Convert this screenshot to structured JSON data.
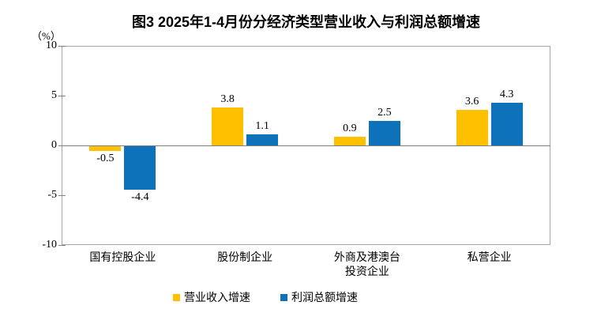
{
  "chart_data": {
    "type": "bar",
    "title": "图3 2025年1-4月份分经济类型营业收入与利润总额增速",
    "unit": "（%）",
    "categories": [
      "国有控股企业",
      "股份制企业",
      "外商及港澳台\n投资企业",
      "私营企业"
    ],
    "series": [
      {
        "name": "营业收入增速",
        "color": "#FFC000",
        "values": [
          -0.5,
          3.8,
          0.9,
          3.6
        ]
      },
      {
        "name": "利润总额增速",
        "color": "#0D72B9",
        "values": [
          -4.4,
          1.1,
          2.5,
          4.3
        ]
      }
    ],
    "ylim": [
      -10,
      10
    ],
    "yticks": [
      10,
      5,
      0,
      -5,
      -10
    ],
    "grid": false,
    "legend_position": "bottom",
    "value_labels": true,
    "xlabel": "",
    "ylabel": "（%）"
  }
}
